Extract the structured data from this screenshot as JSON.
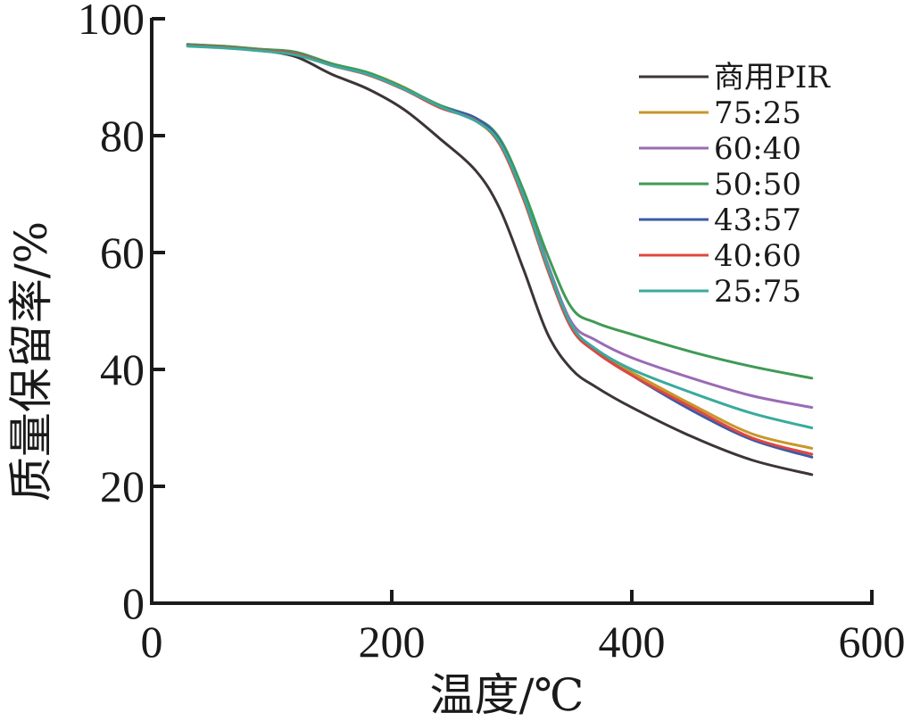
{
  "chart_data": {
    "type": "line",
    "title": "",
    "xlabel": "温度/℃",
    "ylabel": "质量保留率/%",
    "xlim": [
      0,
      600
    ],
    "ylim": [
      0,
      100
    ],
    "x_ticks": [
      0,
      200,
      400,
      600
    ],
    "x_tick_labels": [
      "0",
      "200",
      "400",
      "600"
    ],
    "y_ticks": [
      0,
      20,
      40,
      60,
      80,
      100
    ],
    "y_tick_labels": [
      "0",
      "20",
      "40",
      "60",
      "80",
      "100"
    ],
    "grid": false,
    "legend_position": "top-right",
    "x": [
      30,
      60,
      90,
      120,
      150,
      180,
      210,
      240,
      270,
      290,
      310,
      330,
      350,
      370,
      400,
      450,
      500,
      550
    ],
    "series": [
      {
        "name": "商用PIR",
        "color": "#3d3535",
        "values": [
          95.6,
          95.2,
          94.6,
          93.5,
          90.5,
          88.0,
          84.5,
          79.5,
          74.0,
          67.5,
          57.0,
          46.0,
          40.0,
          37.0,
          33.5,
          28.5,
          24.5,
          22.0
        ]
      },
      {
        "name": "75:25",
        "color": "#c8962a",
        "values": [
          95.5,
          95.3,
          94.8,
          94.2,
          92.3,
          90.8,
          88.3,
          85.0,
          82.5,
          78.5,
          69.0,
          57.5,
          47.5,
          43.0,
          39.5,
          34.0,
          29.0,
          26.5
        ]
      },
      {
        "name": "60:40",
        "color": "#9b6bb4",
        "values": [
          95.5,
          95.2,
          94.7,
          94.2,
          92.2,
          90.6,
          88.0,
          85.0,
          82.5,
          79.0,
          70.0,
          58.0,
          48.0,
          45.0,
          42.0,
          38.5,
          35.5,
          33.5
        ]
      },
      {
        "name": "50:50",
        "color": "#3f9a55",
        "values": [
          95.6,
          95.3,
          94.8,
          94.3,
          92.3,
          90.8,
          88.2,
          85.2,
          83.0,
          79.5,
          70.5,
          59.5,
          50.5,
          48.0,
          46.0,
          43.0,
          40.5,
          38.5
        ]
      },
      {
        "name": "43:57",
        "color": "#3d5aa8",
        "values": [
          95.4,
          95.1,
          94.6,
          94.0,
          92.0,
          90.5,
          88.0,
          85.0,
          83.0,
          79.0,
          69.5,
          57.0,
          47.0,
          43.0,
          39.0,
          33.0,
          28.0,
          25.0
        ]
      },
      {
        "name": "40:60",
        "color": "#e0473e",
        "values": [
          95.4,
          95.1,
          94.6,
          94.0,
          92.0,
          90.4,
          87.9,
          84.8,
          82.6,
          78.5,
          69.0,
          57.0,
          47.0,
          43.0,
          39.0,
          33.5,
          28.3,
          25.5
        ]
      },
      {
        "name": "25:75",
        "color": "#3aaa9e",
        "values": [
          95.3,
          95.0,
          94.5,
          93.8,
          92.0,
          90.5,
          88.0,
          85.0,
          82.5,
          78.8,
          69.5,
          57.5,
          47.5,
          43.5,
          40.0,
          36.0,
          32.5,
          30.0
        ]
      }
    ]
  }
}
